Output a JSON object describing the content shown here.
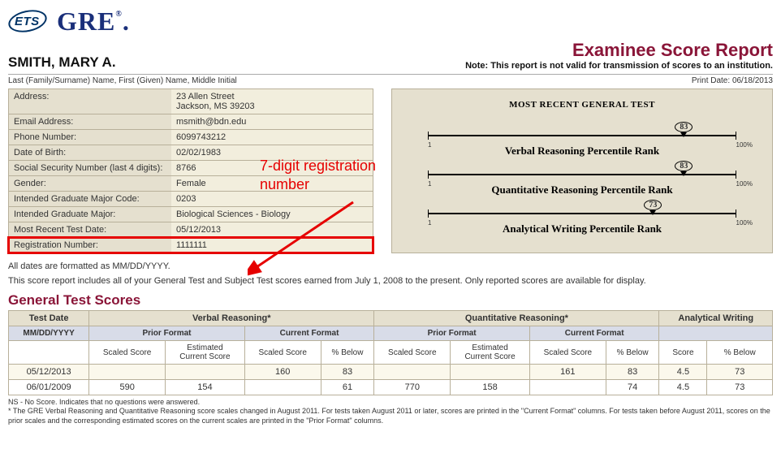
{
  "logo": {
    "ets": "ETS",
    "gre": "GRE"
  },
  "examinee_name": "SMITH, MARY A.",
  "report_title": "Examinee Score Report",
  "report_note": "Note: This report is not valid for transmission of scores to an institution.",
  "meta_left": "Last (Family/Surname) Name, First (Given) Name, Middle Initial",
  "meta_right_label": "Print Date:",
  "meta_right_value": "06/18/2013",
  "info": {
    "address_label": "Address:",
    "address_value": "23 Allen Street\nJackson, MS 39203",
    "email_label": "Email Address:",
    "email_value": "msmith@bdn.edu",
    "phone_label": "Phone Number:",
    "phone_value": "6099743212",
    "dob_label": "Date of Birth:",
    "dob_value": "02/02/1983",
    "ssn_label": "Social Security Number (last 4 digits):",
    "ssn_value": "8766",
    "gender_label": "Gender:",
    "gender_value": "Female",
    "major_code_label": "Intended Graduate Major Code:",
    "major_code_value": "0203",
    "major_label": "Intended Graduate Major:",
    "major_value": "Biological Sciences - Biology",
    "recent_date_label": "Most Recent Test Date:",
    "recent_date_value": "05/12/2013",
    "reg_label": "Registration Number:",
    "reg_value": "1111111"
  },
  "annotation": {
    "line1": "7-digit registration",
    "line2": "number"
  },
  "chart": {
    "title": "MOST RECENT GENERAL TEST",
    "left_label": "1",
    "right_label": "100%",
    "sections": [
      {
        "value": "83",
        "pct": 83,
        "caption": "Verbal Reasoning Percentile Rank"
      },
      {
        "value": "83",
        "pct": 83,
        "caption": "Quantitative Reasoning Percentile Rank"
      },
      {
        "value": "73",
        "pct": 73,
        "caption": "Analytical Writing Percentile Rank"
      }
    ]
  },
  "notes": {
    "n1": "All dates are formatted as MM/DD/YYYY.",
    "n2": "This score report includes all of your General Test and Subject Test scores earned from July 1, 2008 to the present. Only reported scores are available for display."
  },
  "section_title": "General Test Scores",
  "table": {
    "h1": {
      "date": "Test Date",
      "verbal": "Verbal Reasoning*",
      "quant": "Quantitative Reasoning*",
      "aw": "Analytical Writing"
    },
    "h2": {
      "date": "MM/DD/YYYY",
      "prior": "Prior Format",
      "current": "Current Format"
    },
    "h3": {
      "scaled": "Scaled Score",
      "est": "Estimated\nCurrent Score",
      "below": "% Below",
      "score": "Score"
    },
    "rows": [
      {
        "date": "05/12/2013",
        "v_ps": "",
        "v_est": "",
        "v_cs": "160",
        "v_cb": "83",
        "q_ps": "",
        "q_est": "",
        "q_cs": "161",
        "q_cb": "83",
        "aw_s": "4.5",
        "aw_b": "73"
      },
      {
        "date": "06/01/2009",
        "v_ps": "590",
        "v_est": "154",
        "v_cs": "",
        "v_cb": "61",
        "q_ps": "770",
        "q_est": "158",
        "q_cs": "",
        "q_cb": "74",
        "aw_s": "4.5",
        "aw_b": "73"
      }
    ]
  },
  "footnotes": {
    "f1": "NS - No Score. Indicates that no questions were answered.",
    "f2": "* The GRE Verbal Reasoning and Quantitative Reasoning score scales changed in August 2011. For tests taken August 2011 or later, scores are printed in the \"Current Format\" columns. For tests taken before August 2011, scores on the prior scales and the corresponding estimated scores on the current scales are printed in the \"Prior Format\" columns."
  },
  "colors": {
    "maroon": "#8a1538",
    "panel_bg": "#e5e0cf",
    "panel_border": "#b8b09a",
    "highlight": "#e60000",
    "navy": "#1a2f7a"
  }
}
